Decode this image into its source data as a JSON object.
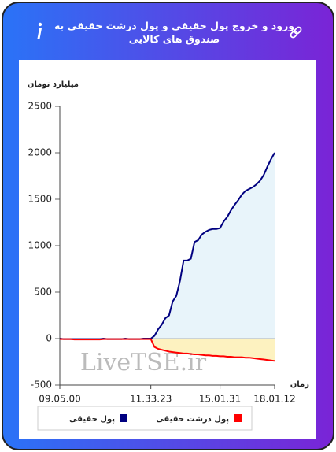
{
  "chart_data": {
    "type": "line",
    "title": "ورود و خروج پول حقیقی و پول درشت حقیقی به صندوق های کالایی",
    "y_label": "میلیارد تومان",
    "x_label": "زمان",
    "watermark": "LiveTSE.ir",
    "categories": [
      "09.05.00",
      null,
      null,
      null,
      null,
      null,
      null,
      null,
      null,
      null,
      null,
      null,
      null,
      null,
      null,
      null,
      null,
      null,
      null,
      null,
      null,
      null,
      null,
      null,
      null,
      "11.33.23",
      null,
      null,
      null,
      null,
      null,
      null,
      null,
      null,
      null,
      null,
      null,
      null,
      null,
      null,
      null,
      null,
      null,
      null,
      "15.01.31",
      null,
      null,
      null,
      null,
      null,
      null,
      null,
      null,
      null,
      null,
      null,
      null,
      null,
      null,
      "18.01.12"
    ],
    "series": [
      {
        "name": "پول حقیقی",
        "color": "#000080",
        "fill": "#e8f4fa",
        "values": [
          0,
          -5,
          -5,
          -5,
          -5,
          -5,
          -5,
          -5,
          -5,
          -5,
          -5,
          -5,
          0,
          -5,
          -5,
          -5,
          -5,
          -5,
          0,
          -5,
          -5,
          -5,
          -5,
          0,
          0,
          0,
          30,
          100,
          150,
          220,
          250,
          400,
          460,
          620,
          840,
          840,
          860,
          1040,
          1060,
          1120,
          1150,
          1170,
          1180,
          1180,
          1190,
          1260,
          1310,
          1380,
          1440,
          1490,
          1550,
          1590,
          1610,
          1630,
          1660,
          1700,
          1760,
          1850,
          1930,
          2000
        ]
      },
      {
        "name": "پول درشت حقیقی",
        "color": "#ff0000",
        "fill": "#fdf2c0",
        "values": [
          -5,
          -5,
          -5,
          -5,
          -10,
          -10,
          -10,
          -10,
          -10,
          -10,
          -10,
          -10,
          -5,
          -5,
          -5,
          -5,
          -5,
          -5,
          -5,
          -5,
          -5,
          -5,
          -5,
          -5,
          -5,
          -5,
          -90,
          -110,
          -120,
          -130,
          -140,
          -145,
          -150,
          -155,
          -160,
          -160,
          -165,
          -170,
          -170,
          -175,
          -180,
          -180,
          -185,
          -185,
          -190,
          -190,
          -195,
          -195,
          -200,
          -200,
          -200,
          -205,
          -205,
          -210,
          -215,
          -220,
          -225,
          -230,
          -235,
          -240
        ]
      }
    ],
    "ylim": [
      -500,
      2500
    ],
    "yticks": [
      -500,
      0,
      500,
      1000,
      1500,
      2000,
      2500
    ]
  }
}
